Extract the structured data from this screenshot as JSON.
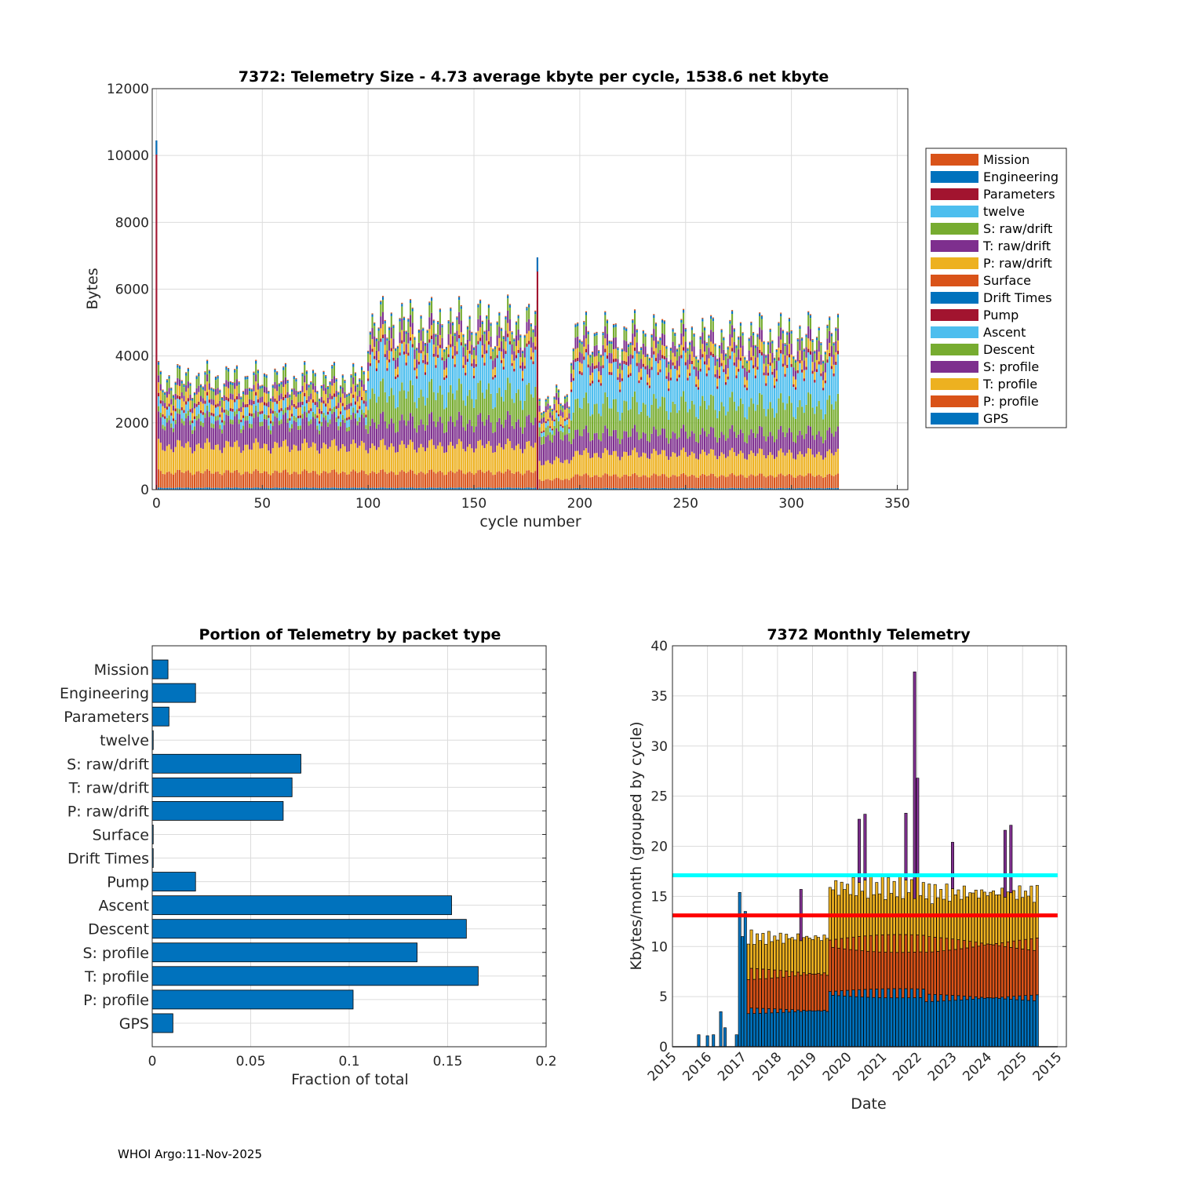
{
  "footer": "WHOI Argo:11-Nov-2025",
  "colors": {
    "Mission": "#D95319",
    "Engineering": "#0072BD",
    "Parameters": "#A2142F",
    "twelve": "#4DBEEE",
    "S: raw/drift": "#77AC30",
    "T: raw/drift": "#7E2F8E",
    "P: raw/drift": "#EDB120",
    "Surface": "#D95319",
    "Drift Times": "#0072BD",
    "Pump": "#A2142F",
    "Ascent": "#4DBEEE",
    "Descent": "#77AC30",
    "S: profile": "#7E2F8E",
    "T: profile": "#EDB120",
    "P: profile": "#D95319",
    "GPS": "#0072BD",
    "bar_blue": "#0072BD",
    "line_cyan": "#00FFFF",
    "line_red": "#FF0000"
  },
  "chart_data": [
    {
      "type": "bar",
      "stacked": true,
      "title": "7372: Telemetry Size - 4.73 average kbyte per cycle, 1538.6 net kbyte",
      "xlabel": "cycle number",
      "ylabel": "Bytes",
      "xlim": [
        -2,
        355
      ],
      "ylim": [
        0,
        12000
      ],
      "xticks": [
        "0",
        "50",
        "100",
        "150",
        "200",
        "250",
        "300",
        "350"
      ],
      "yticks": [
        "0",
        "2000",
        "4000",
        "6000",
        "8000",
        "10000",
        "12000"
      ],
      "grid": true,
      "legend_position": "outside-right",
      "legend": [
        "Mission",
        "Engineering",
        "Parameters",
        "twelve",
        "S: raw/drift",
        "T: raw/drift",
        "P: raw/drift",
        "Surface",
        "Drift Times",
        "Pump",
        "Ascent",
        "Descent",
        "S: profile",
        "T: profile",
        "P: profile",
        "GPS"
      ],
      "n_cycles": 323,
      "spikes": [
        {
          "cycle": 0,
          "total": 10450
        },
        {
          "cycle": 180,
          "total": 6950
        }
      ],
      "segments": [
        {
          "from": 1,
          "to": 99,
          "components": {
            "GPS": 60,
            "P: profile": 520,
            "T: profile": 870,
            "S: profile": 780,
            "Descent": 150,
            "Ascent": 280,
            "Pump": 100,
            "P: raw/drift": 300,
            "T: raw/drift": 200,
            "S: raw/drift": 300,
            "Engineering": 80,
            "Mission": 30
          }
        },
        {
          "from": 100,
          "to": 180,
          "components": {
            "GPS": 60,
            "P: profile": 520,
            "T: profile": 870,
            "S: profile": 780,
            "Descent": 950,
            "Ascent": 1150,
            "Pump": 100,
            "P: raw/drift": 300,
            "T: raw/drift": 350,
            "S: raw/drift": 350,
            "Engineering": 80,
            "Mission": 30
          }
        },
        {
          "from": 181,
          "to": 195,
          "components": {
            "GPS": 40,
            "P: profile": 300,
            "T: profile": 600,
            "S: profile": 800,
            "Descent": 300,
            "Ascent": 150,
            "Pump": 60,
            "P: raw/drift": 300,
            "T: raw/drift": 200,
            "S: raw/drift": 150,
            "Engineering": 60,
            "Mission": 30
          }
        },
        {
          "from": 196,
          "to": 322,
          "components": {
            "GPS": 50,
            "P: profile": 420,
            "T: profile": 720,
            "S: profile": 650,
            "Descent": 950,
            "Ascent": 1150,
            "Pump": 100,
            "P: raw/drift": 300,
            "T: raw/drift": 350,
            "S: raw/drift": 320,
            "Engineering": 80,
            "Mission": 30
          }
        }
      ]
    },
    {
      "type": "barh",
      "title": "Portion of Telemetry by packet type",
      "xlabel": "Fraction of total",
      "xlim": [
        0,
        0.2
      ],
      "xticks": [
        "0",
        "0.05",
        "0.1",
        "0.15",
        "0.2"
      ],
      "grid": true,
      "categories": [
        "Mission",
        "Engineering",
        "Parameters",
        "twelve",
        "S: raw/drift",
        "T: raw/drift",
        "P: raw/drift",
        "Surface",
        "Drift Times",
        "Pump",
        "Ascent",
        "Descent",
        "S: profile",
        "T: profile",
        "P: profile",
        "GPS"
      ],
      "values": [
        0.008,
        0.022,
        0.0085,
        0.0005,
        0.0755,
        0.071,
        0.0665,
        0.0005,
        0.0005,
        0.022,
        0.152,
        0.1595,
        0.1345,
        0.1655,
        0.102,
        0.0105
      ]
    },
    {
      "type": "bar",
      "stacked": true,
      "title": "7372 Monthly Telemetry",
      "xlabel": "Date",
      "ylabel": "Kbytes/month (grouped by cycle)",
      "xlim": [
        2015.0,
        2026.25
      ],
      "ylim": [
        0,
        40
      ],
      "yticks": [
        "0",
        "5",
        "10",
        "15",
        "20",
        "25",
        "30",
        "35",
        "40"
      ],
      "xticks": [
        "2015",
        "2016",
        "2017",
        "2018",
        "2019",
        "2020",
        "2021",
        "2022",
        "2023",
        "2024",
        "2025",
        "2015"
      ],
      "grid": true,
      "hlines": [
        {
          "y": 17.1,
          "color": "#00FFFF"
        },
        {
          "y": 13.1,
          "color": "#FF0000"
        }
      ],
      "early_bars": [
        {
          "x": 2015.75,
          "value": 1.2
        },
        {
          "x": 2016.0,
          "value": 1.1
        },
        {
          "x": 2016.17,
          "value": 1.2
        },
        {
          "x": 2016.38,
          "value": 3.5
        },
        {
          "x": 2016.5,
          "value": 1.9
        },
        {
          "x": 2016.83,
          "value": 1.2
        },
        {
          "x": 2016.92,
          "value": 15.4
        },
        {
          "x": 2017.0,
          "value": 11.0
        },
        {
          "x": 2017.08,
          "value": 13.5
        }
      ],
      "monthly_ranges": [
        {
          "from": 2017.17,
          "to": 2019.5,
          "blue": 3.9,
          "orange": 4.0,
          "yellow": 3.8
        },
        {
          "from": 2019.5,
          "to": 2022.25,
          "blue": 5.8,
          "orange": 5.4,
          "yellow": 5.9
        },
        {
          "from": 2022.25,
          "to": 2025.42,
          "blue": 5.3,
          "orange": 5.8,
          "yellow": 5.4
        }
      ],
      "peaks": [
        {
          "x": 2018.67,
          "value": 15.7
        },
        {
          "x": 2020.33,
          "value": 22.7
        },
        {
          "x": 2020.5,
          "value": 23.2
        },
        {
          "x": 2021.67,
          "value": 23.3
        },
        {
          "x": 2021.92,
          "value": 37.4
        },
        {
          "x": 2022.0,
          "value": 26.8
        },
        {
          "x": 2023.0,
          "value": 20.4
        },
        {
          "x": 2024.5,
          "value": 21.6
        },
        {
          "x": 2024.67,
          "value": 22.1
        }
      ]
    }
  ]
}
